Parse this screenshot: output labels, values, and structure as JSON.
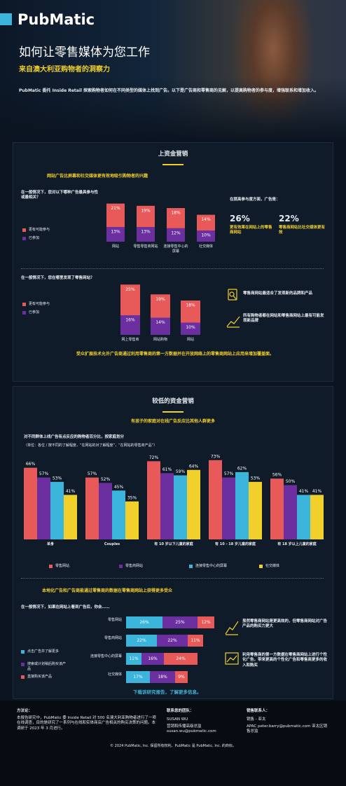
{
  "header": {
    "logo": "PubMatic",
    "title": "如何让零售媒体为您工作",
    "subtitle": "来自澳大利亚购物者的洞察力",
    "intro": "PubMatic 委托 Inside Retail 探索购物者如何在不同类型的媒体上找到广告。以下是广告商和零售商的见解，以提高购物者的参与度，增强联系和增加收入。"
  },
  "upper": {
    "heading": "上资金营销",
    "stats_intro": "在提高参与度方面，广告是：",
    "stats": [
      {
        "figure": "26%",
        "text": "更有效果在网站上的零售商网站"
      },
      {
        "figure": "22%",
        "text": "零售商网站比社交媒体更有效"
      }
    ],
    "notes": [
      "零售商网站最适合了发现新的品牌和产品",
      "所有购物者都在网站和零售商网站上最有可能发现新品牌"
    ],
    "callout": "受众扩展技术允许广告商通过利用零售商的第一方数据并在开放网络上的零售商网站上应用来增加覆盖面。"
  },
  "lower": {
    "heading": "较低的资金营销",
    "notes": [
      "虽然零售商网站是更高效的，但零售商网站对广告产品的购买力更大",
      "利用零售商的第一方数据在零售商网站上进行个性化广告，带来更高的个性化广告和零售商更多的收入和购买"
    ],
    "link": "下载该研究报告，了解更多信息。"
  },
  "footer": {
    "method_title": "方法论：",
    "method": "本报告研究中，PubMatic 委 Inside Retail 对 500 名澳大利亚购物者进行了一项在线调查，目的是研究了一系列与在线和实体商店广告相关的购买决策的问题。本调研于 2023 年 3 月进行。",
    "contact_title": "联系您的团队：",
    "contact_name": "SUSAN WU",
    "contact_text": "营销和传播高级总监 susan.wu@pubmatic.com",
    "sales_title": "销售联系人：",
    "sales_name": "销售 - 亚太",
    "sales_text": "APAC peter.barry@pubmatic.com 亚太区销售总监",
    "copyright": "© 2024 PubMatic, Inc. 保留所有权利。PubMatic 是 PubMatic, Inc. 的商标。"
  },
  "chart_data": [
    {
      "type": "stacked-bar",
      "title": "网站广告比屏幕和社交媒体更有效地吸引购物者的兴趣",
      "question": "在一般情况下，您对以下哪种广告最具参与性或最相关？",
      "categories": [
        "网站",
        "零售零售商网站",
        "连接零售中心的屏幕",
        "社交媒体"
      ],
      "series": [
        {
          "name": "更有可能参与",
          "color": "#e85a5a",
          "values": [
            21,
            19,
            18,
            14
          ],
          "value_labels": [
            "21%",
            "19%",
            "18%",
            "14%"
          ]
        },
        {
          "name": "已参加",
          "color": "#6b2fa0",
          "values": [
            13,
            13,
            12,
            10
          ],
          "value_labels": [
            "13%",
            "13%",
            "12%",
            "10%"
          ]
        }
      ]
    },
    {
      "type": "stacked-bar",
      "question": "在一般情况下，您在哪里发现了零售网站？",
      "categories": [
        "网上零售商",
        "网站购物",
        "网站"
      ],
      "series": [
        {
          "name": "更有可能参与",
          "color": "#e85a5a",
          "values": [
            25,
            19,
            18
          ],
          "value_labels": [
            "25%",
            "19%",
            "18%"
          ]
        },
        {
          "name": "已参加",
          "color": "#6b2fa0",
          "values": [
            16,
            14,
            10
          ],
          "value_labels": [
            "16%",
            "14%",
            "10%"
          ]
        }
      ]
    },
    {
      "type": "grouped-bar",
      "title": "有孩子的家庭对在线广告反应比其他人群更多",
      "question": "对不同群体上线广告有点反应的购物者百分比，按家庭划分",
      "note": "（单位：各位 / 按不同的了解程度，“在网站的对了解程度”，“在网站的零售商产品”）",
      "categories": [
        "单身",
        "Couples",
        "有 10 岁以下儿童的家庭",
        "有 10 - 18 岁儿童的家庭",
        "有 18 岁以上儿童的家庭"
      ],
      "series": [
        {
          "name": "零售网站",
          "color": "#e85a5a",
          "values": [
            66,
            57,
            72,
            73,
            56
          ],
          "value_labels": [
            "66%",
            "57%",
            "72%",
            "73%",
            "56%"
          ]
        },
        {
          "name": "零售商网站",
          "color": "#6b2fa0",
          "values": [
            57,
            52,
            61,
            57,
            50
          ],
          "value_labels": [
            "57%",
            "52%",
            "61%",
            "57%",
            "50%"
          ]
        },
        {
          "name": "连接零售中心的屏幕",
          "color": "#3bb5db",
          "values": [
            53,
            45,
            59,
            62,
            41
          ],
          "value_labels": [
            "53%",
            "45%",
            "59%",
            "62%",
            "41%"
          ]
        },
        {
          "name": "社交媒体",
          "color": "#f2d02b",
          "values": [
            41,
            35,
            64,
            53,
            41
          ],
          "value_labels": [
            "41%",
            "35%",
            "64%",
            "53%",
            "41%"
          ]
        }
      ]
    },
    {
      "type": "horizontal-stacked-bar",
      "title": "本地化广告和广告商能通过零售商的数据在零售商网站上获得更多受众",
      "question": "在一般情况下，如果在网站上看到广告后，你会……",
      "categories": [
        "零售网站",
        "零售商网站",
        "连接零售中心的屏幕",
        "社交媒体"
      ],
      "series": [
        {
          "name": "点击广告并了解更多",
          "color": "#3bb5db",
          "values": [
            26,
            22,
            11,
            17
          ],
          "value_labels": [
            "26%",
            "22%",
            "11%",
            "17%"
          ]
        },
        {
          "name": "搜索或计划稍后购买该产品",
          "color": "#6b2fa0",
          "values": [
            25,
            22,
            16,
            18
          ],
          "value_labels": [
            "25%",
            "22%",
            "16%",
            "18%"
          ]
        },
        {
          "name": "直接购买该产品",
          "color": "#e85a5a",
          "values": [
            12,
            11,
            24,
            9
          ],
          "value_labels": [
            "12%",
            "11%",
            "24%",
            "9%"
          ]
        }
      ]
    }
  ]
}
